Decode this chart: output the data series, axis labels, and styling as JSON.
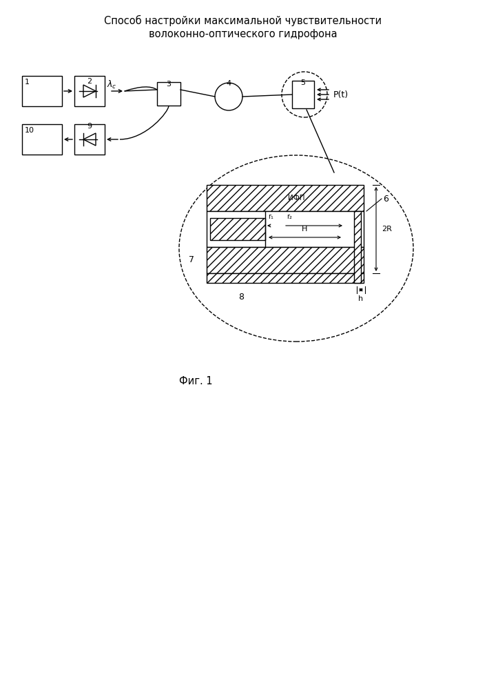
{
  "title_line1": "Способ настройки максимальной чувствительности",
  "title_line2": "волоконно-оптического гидрофона",
  "fig_caption": "Фиг. 1",
  "bg_color": "#ffffff",
  "line_color": "#000000"
}
